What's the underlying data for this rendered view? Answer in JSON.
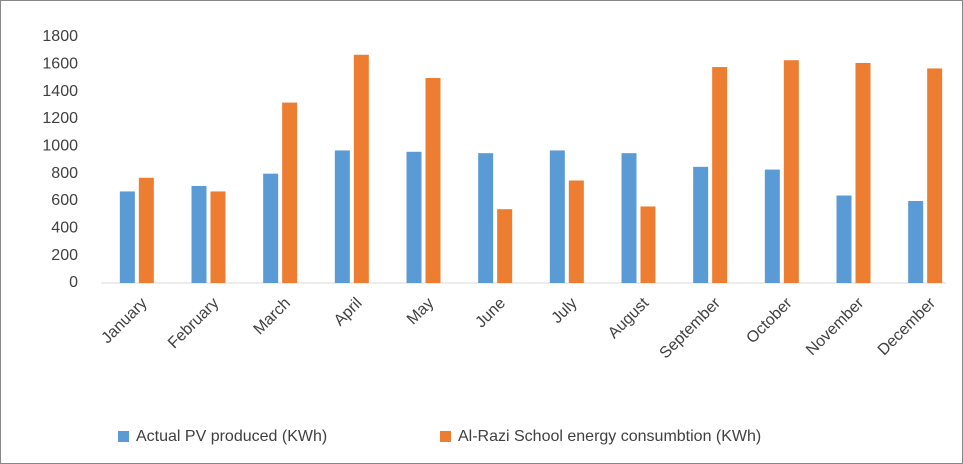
{
  "chart_data": {
    "type": "bar",
    "categories": [
      "January",
      "February",
      "March",
      "April",
      "May",
      "June",
      "July",
      "August",
      "September",
      "October",
      "November",
      "December"
    ],
    "series": [
      {
        "name": "Actual PV produced (KWh)",
        "color": "#5b9bd5",
        "values": [
          670,
          710,
          800,
          970,
          960,
          950,
          970,
          950,
          850,
          830,
          640,
          600
        ]
      },
      {
        "name": "Al-Razi School energy consumbtion (KWh)",
        "color": "#ed7d31",
        "values": [
          770,
          670,
          1320,
          1670,
          1500,
          540,
          750,
          560,
          1580,
          1630,
          1610,
          1570
        ]
      }
    ],
    "ylim": [
      0,
      1800
    ],
    "yticks": [
      0,
      200,
      400,
      600,
      800,
      1000,
      1200,
      1400,
      1600,
      1800
    ],
    "grid": false,
    "legend": "bottom"
  }
}
